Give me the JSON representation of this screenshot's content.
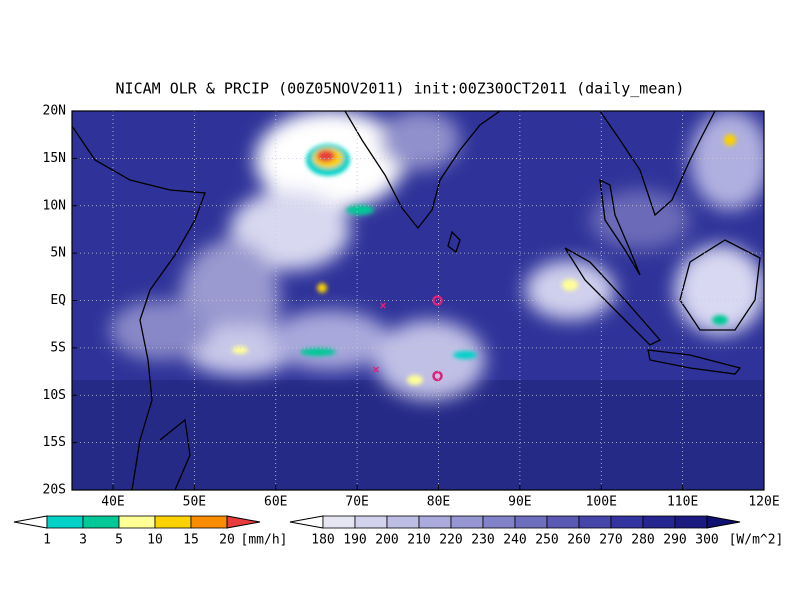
{
  "title": "NICAM OLR & PRCIP (00Z05NOV2011) init:00Z30OCT2011 (daily_mean)",
  "lat_labels": [
    "20N",
    "15N",
    "10N",
    "5N",
    "EQ",
    "5S",
    "10S",
    "15S",
    "20S"
  ],
  "lon_labels": [
    "40E",
    "50E",
    "60E",
    "70E",
    "80E",
    "90E",
    "100E",
    "110E",
    "120E"
  ],
  "precip_colorbar": {
    "labels": [
      "1",
      "3",
      "5",
      "10",
      "15",
      "20"
    ],
    "unit": "[mm/h]"
  },
  "olr_colorbar": {
    "labels": [
      "180",
      "190",
      "200",
      "210",
      "220",
      "230",
      "240",
      "250",
      "260",
      "270",
      "280",
      "290",
      "300"
    ],
    "unit": "[W/m^2]"
  }
}
